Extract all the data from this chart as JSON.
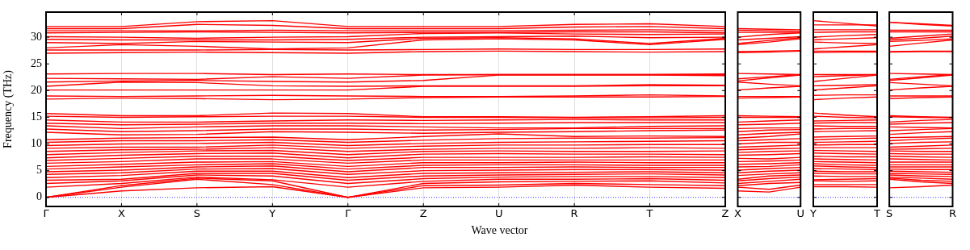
{
  "chart_data": [
    {
      "type": "line",
      "xlabel": "Wave vector",
      "ylabel": "Frequency (THz)",
      "color": "#ff0000",
      "grid": "x",
      "legend": false,
      "marker": "none",
      "line_style": "solid",
      "categories": [
        "Γ",
        "X",
        "S",
        "Y",
        "Γ",
        "Z",
        "U",
        "R",
        "T",
        "Z"
      ],
      "ylim": [
        -1.7,
        34.7
      ],
      "yticks": [
        0,
        5,
        10,
        15,
        20,
        25,
        30
      ],
      "ref_lines": [
        {
          "axis": "y",
          "value": 0,
          "color": "#0000ff",
          "line_style": "dotted"
        }
      ],
      "series": [
        {
          "values": [
            0,
            1.2,
            1.8,
            2.0,
            0,
            1.8,
            1.9,
            2.3,
            1.9,
            1.7
          ]
        },
        {
          "values": [
            0,
            1.9,
            3.4,
            2.4,
            0,
            2.2,
            2.3,
            2.6,
            2.4,
            2.2
          ]
        },
        {
          "values": [
            0,
            2.2,
            3.6,
            3.1,
            0,
            2.6,
            2.9,
            3.0,
            3.1,
            2.7
          ]
        },
        {
          "values": [
            1.9,
            2.6,
            3.8,
            3.3,
            1.9,
            3.0,
            3.4,
            3.4,
            3.5,
            3.2
          ]
        },
        {
          "values": [
            2.6,
            3.1,
            4.2,
            4.0,
            2.6,
            3.5,
            3.8,
            3.9,
            3.9,
            3.7
          ]
        },
        {
          "values": [
            3.2,
            3.4,
            4.5,
            4.5,
            3.2,
            4.0,
            4.2,
            4.3,
            4.4,
            4.2
          ]
        },
        {
          "values": [
            3.7,
            4.1,
            4.9,
            4.9,
            3.7,
            4.5,
            4.6,
            4.7,
            4.8,
            4.6
          ]
        },
        {
          "values": [
            4.3,
            4.6,
            5.3,
            5.4,
            4.3,
            5.0,
            5.1,
            5.2,
            5.2,
            5.1
          ]
        },
        {
          "values": [
            4.8,
            5.1,
            5.7,
            5.9,
            4.8,
            5.6,
            5.6,
            5.7,
            5.6,
            5.6
          ]
        },
        {
          "values": [
            5.3,
            5.7,
            6.1,
            6.3,
            5.3,
            6.0,
            6.1,
            6.1,
            6.0,
            6.0
          ]
        },
        {
          "values": [
            5.8,
            6.2,
            6.6,
            6.7,
            5.8,
            6.5,
            6.5,
            6.6,
            6.5,
            6.5
          ]
        },
        {
          "values": [
            6.4,
            6.7,
            7.2,
            7.2,
            6.4,
            7.0,
            7.0,
            7.0,
            7.0,
            7.0
          ]
        },
        {
          "values": [
            6.9,
            7.3,
            7.7,
            7.7,
            6.9,
            7.5,
            7.5,
            7.5,
            7.6,
            7.5
          ]
        },
        {
          "values": [
            7.4,
            7.9,
            8.2,
            8.3,
            7.4,
            8.1,
            8.2,
            8.1,
            8.1,
            8.0
          ]
        },
        {
          "values": [
            8.0,
            8.4,
            8.7,
            8.8,
            8.0,
            8.6,
            8.7,
            8.6,
            8.6,
            8.7
          ]
        },
        {
          "values": [
            8.6,
            8.9,
            9.0,
            9.3,
            8.6,
            9.0,
            9.2,
            9.2,
            9.3,
            9.2
          ]
        },
        {
          "values": [
            9.2,
            9.4,
            9.4,
            9.8,
            9.2,
            9.6,
            9.8,
            9.8,
            9.9,
            9.9
          ]
        },
        {
          "values": [
            9.7,
            10.0,
            10.1,
            10.3,
            9.7,
            10.1,
            10.3,
            10.4,
            10.5,
            10.6
          ]
        },
        {
          "values": [
            10.3,
            10.6,
            10.6,
            10.8,
            10.3,
            10.7,
            11.0,
            11.1,
            11.1,
            11.2
          ]
        },
        {
          "values": [
            10.8,
            11.1,
            11.2,
            11.3,
            10.8,
            11.4,
            11.9,
            11.4,
            11.5,
            11.4
          ]
        },
        {
          "values": [
            12.2,
            11.7,
            11.8,
            12.3,
            12.2,
            12.0,
            12.2,
            12.3,
            12.5,
            12.6
          ]
        },
        {
          "values": [
            12.8,
            12.3,
            12.5,
            12.8,
            12.8,
            12.6,
            12.7,
            12.9,
            12.9,
            12.9
          ]
        },
        {
          "values": [
            13.4,
            12.9,
            13.2,
            13.4,
            13.4,
            13.2,
            13.0,
            13.0,
            13.3,
            13.4
          ]
        },
        {
          "values": [
            13.9,
            13.6,
            13.7,
            13.9,
            13.9,
            13.8,
            13.9,
            14.0,
            14.0,
            14.0
          ]
        },
        {
          "values": [
            14.5,
            14.1,
            14.1,
            14.3,
            14.5,
            14.4,
            14.5,
            14.6,
            14.5,
            14.5
          ]
        },
        {
          "values": [
            15.2,
            15.0,
            15.1,
            15.2,
            15.2,
            15.0,
            15.0,
            14.9,
            14.9,
            15.0
          ]
        },
        {
          "values": [
            15.7,
            15.3,
            15.3,
            15.8,
            15.7,
            15.1,
            15.1,
            15.0,
            15.1,
            15.3
          ]
        },
        {
          "values": [
            18.4,
            18.6,
            18.5,
            18.3,
            18.4,
            18.7,
            18.8,
            18.8,
            18.8,
            18.9
          ]
        },
        {
          "values": [
            19.0,
            18.9,
            19.0,
            19.1,
            19.0,
            18.9,
            18.9,
            19.0,
            19.2,
            19.0
          ]
        },
        {
          "values": [
            20.1,
            20.1,
            20.1,
            20.1,
            20.1,
            20.8,
            20.8,
            20.8,
            20.9,
            20.9
          ]
        },
        {
          "values": [
            20.8,
            21.6,
            21.5,
            20.9,
            20.8,
            20.9,
            20.9,
            20.9,
            21.1,
            21.0
          ]
        },
        {
          "values": [
            21.6,
            21.8,
            21.9,
            21.7,
            21.6,
            21.9,
            22.9,
            22.9,
            22.9,
            22.8
          ]
        },
        {
          "values": [
            22.3,
            22.2,
            22.1,
            22.6,
            22.3,
            22.9,
            23.0,
            23.0,
            23.0,
            23.0
          ]
        },
        {
          "values": [
            23.1,
            23.2,
            23.2,
            23.0,
            23.1,
            23.0,
            23.0,
            23.0,
            23.0,
            23.1
          ]
        },
        {
          "values": [
            27.0,
            27.1,
            27.2,
            27.1,
            27.0,
            27.3,
            27.4,
            27.3,
            27.2,
            27.3
          ]
        },
        {
          "values": [
            27.6,
            27.6,
            27.6,
            27.7,
            27.6,
            27.7,
            27.8,
            27.7,
            27.7,
            27.8
          ]
        },
        {
          "values": [
            28.0,
            28.6,
            28.3,
            27.8,
            28.0,
            29.5,
            29.7,
            29.5,
            28.6,
            29.6
          ]
        },
        {
          "values": [
            29.0,
            28.8,
            29.2,
            29.1,
            29.0,
            29.8,
            29.9,
            29.7,
            28.8,
            29.8
          ]
        },
        {
          "values": [
            29.6,
            29.5,
            29.5,
            29.5,
            29.6,
            30.0,
            30.1,
            30.2,
            29.9,
            30.0
          ]
        },
        {
          "values": [
            30.1,
            30.0,
            29.8,
            30.0,
            30.1,
            30.7,
            30.8,
            30.6,
            30.5,
            30.6
          ]
        },
        {
          "values": [
            30.8,
            30.9,
            31.0,
            30.9,
            30.8,
            30.9,
            30.9,
            31.0,
            31.0,
            30.8
          ]
        },
        {
          "values": [
            31.2,
            31.2,
            31.2,
            31.3,
            31.2,
            31.2,
            31.2,
            31.3,
            31.4,
            31.2
          ]
        },
        {
          "values": [
            31.6,
            31.6,
            32.4,
            32.2,
            31.6,
            31.6,
            31.6,
            31.9,
            32.0,
            31.6
          ]
        },
        {
          "values": [
            32.0,
            32.0,
            32.9,
            33.1,
            32.0,
            32.0,
            32.0,
            32.4,
            32.5,
            32.0
          ]
        }
      ]
    },
    {
      "type": "line",
      "color": "#ff0000",
      "legend": false,
      "marker": "none",
      "line_style": "solid",
      "tick_labels": "x",
      "categories": [
        "X",
        null,
        "U"
      ],
      "ylim": [
        -1.7,
        34.7
      ],
      "yticks": [
        0,
        5,
        10,
        15,
        20,
        25,
        30
      ],
      "ref_lines": [
        {
          "axis": "y",
          "value": 0,
          "color": "#0000ff",
          "line_style": "dotted"
        }
      ],
      "series": [
        {
          "values": [
            1.2,
            1.0,
            1.9
          ]
        },
        {
          "values": [
            1.9,
            1.5,
            2.3
          ]
        },
        {
          "values": [
            2.2,
            2.6,
            2.8
          ]
        },
        {
          "values": [
            2.6,
            3.0,
            3.4
          ]
        },
        {
          "values": [
            3.1,
            3.5,
            3.8
          ]
        },
        {
          "values": [
            3.4,
            4.0,
            4.2
          ]
        },
        {
          "values": [
            4.1,
            4.4,
            4.6
          ]
        },
        {
          "values": [
            4.6,
            4.9,
            5.1
          ]
        },
        {
          "values": [
            5.1,
            5.4,
            5.6
          ]
        },
        {
          "values": [
            5.7,
            5.8,
            6.1
          ]
        },
        {
          "values": [
            6.2,
            6.3,
            6.5
          ]
        },
        {
          "values": [
            6.7,
            6.8,
            7.0
          ]
        },
        {
          "values": [
            7.3,
            7.2,
            7.5
          ]
        },
        {
          "values": [
            7.9,
            8.0,
            8.2
          ]
        },
        {
          "values": [
            8.4,
            8.6,
            8.7
          ]
        },
        {
          "values": [
            8.9,
            9.1,
            9.2
          ]
        },
        {
          "values": [
            9.4,
            9.6,
            9.8
          ]
        },
        {
          "values": [
            10.0,
            10.3,
            10.3
          ]
        },
        {
          "values": [
            10.6,
            10.8,
            11.0
          ]
        },
        {
          "values": [
            11.1,
            11.4,
            11.9
          ]
        },
        {
          "values": [
            11.7,
            12.0,
            12.2
          ]
        },
        {
          "values": [
            12.3,
            12.6,
            12.7
          ]
        },
        {
          "values": [
            12.9,
            13.0,
            13.0
          ]
        },
        {
          "values": [
            13.6,
            13.7,
            13.9
          ]
        },
        {
          "values": [
            14.1,
            14.3,
            14.5
          ]
        },
        {
          "values": [
            15.0,
            15.0,
            15.0
          ]
        },
        {
          "values": [
            15.3,
            15.2,
            15.1
          ]
        },
        {
          "values": [
            18.6,
            18.7,
            18.8
          ]
        },
        {
          "values": [
            18.9,
            18.9,
            18.9
          ]
        },
        {
          "values": [
            20.1,
            20.5,
            20.8
          ]
        },
        {
          "values": [
            21.6,
            21.2,
            20.9
          ]
        },
        {
          "values": [
            21.8,
            22.4,
            22.9
          ]
        },
        {
          "values": [
            22.2,
            22.6,
            23.0
          ]
        },
        {
          "values": [
            23.2,
            23.1,
            23.0
          ]
        },
        {
          "values": [
            27.1,
            27.2,
            27.4
          ]
        },
        {
          "values": [
            27.3,
            27.4,
            27.5
          ]
        },
        {
          "values": [
            28.6,
            29.1,
            29.7
          ]
        },
        {
          "values": [
            28.8,
            29.4,
            29.9
          ]
        },
        {
          "values": [
            29.5,
            29.8,
            30.1
          ]
        },
        {
          "values": [
            30.0,
            30.5,
            30.8
          ]
        },
        {
          "values": [
            30.9,
            30.9,
            30.9
          ]
        },
        {
          "values": [
            31.3,
            31.2,
            31.1
          ]
        },
        {
          "values": [
            31.6,
            31.5,
            31.4
          ]
        }
      ]
    },
    {
      "type": "line",
      "color": "#ff0000",
      "legend": false,
      "marker": "none",
      "line_style": "solid",
      "tick_labels": "x",
      "categories": [
        "Y",
        null,
        "T"
      ],
      "ylim": [
        -1.7,
        34.7
      ],
      "yticks": [
        0,
        5,
        10,
        15,
        20,
        25,
        30
      ],
      "ref_lines": [
        {
          "axis": "y",
          "value": 0,
          "color": "#0000ff",
          "line_style": "dotted"
        }
      ],
      "series": [
        {
          "values": [
            2.0,
            2.0,
            1.9
          ]
        },
        {
          "values": [
            2.4,
            2.4,
            2.4
          ]
        },
        {
          "values": [
            3.1,
            3.0,
            3.1
          ]
        },
        {
          "values": [
            3.3,
            3.4,
            3.5
          ]
        },
        {
          "values": [
            4.0,
            3.9,
            3.9
          ]
        },
        {
          "values": [
            4.5,
            4.4,
            4.4
          ]
        },
        {
          "values": [
            4.9,
            4.8,
            4.8
          ]
        },
        {
          "values": [
            5.4,
            5.3,
            5.2
          ]
        },
        {
          "values": [
            5.9,
            5.7,
            5.6
          ]
        },
        {
          "values": [
            6.3,
            6.1,
            6.0
          ]
        },
        {
          "values": [
            6.7,
            6.6,
            6.5
          ]
        },
        {
          "values": [
            7.2,
            7.1,
            7.0
          ]
        },
        {
          "values": [
            7.7,
            7.6,
            7.6
          ]
        },
        {
          "values": [
            8.3,
            8.2,
            8.1
          ]
        },
        {
          "values": [
            8.8,
            8.7,
            8.6
          ]
        },
        {
          "values": [
            9.3,
            9.3,
            9.3
          ]
        },
        {
          "values": [
            9.8,
            9.9,
            9.9
          ]
        },
        {
          "values": [
            10.3,
            10.4,
            10.5
          ]
        },
        {
          "values": [
            10.8,
            11.0,
            11.1
          ]
        },
        {
          "values": [
            11.3,
            11.4,
            11.5
          ]
        },
        {
          "values": [
            12.3,
            12.4,
            12.5
          ]
        },
        {
          "values": [
            12.8,
            12.9,
            12.9
          ]
        },
        {
          "values": [
            13.4,
            13.3,
            13.3
          ]
        },
        {
          "values": [
            13.9,
            14.0,
            14.0
          ]
        },
        {
          "values": [
            14.3,
            14.4,
            14.5
          ]
        },
        {
          "values": [
            15.2,
            15.0,
            14.9
          ]
        },
        {
          "values": [
            15.8,
            15.4,
            15.1
          ]
        },
        {
          "values": [
            18.3,
            18.6,
            18.8
          ]
        },
        {
          "values": [
            19.1,
            19.2,
            19.2
          ]
        },
        {
          "values": [
            20.1,
            20.5,
            20.9
          ]
        },
        {
          "values": [
            20.9,
            21.0,
            21.1
          ]
        },
        {
          "values": [
            21.7,
            22.3,
            22.9
          ]
        },
        {
          "values": [
            22.6,
            22.8,
            23.0
          ]
        },
        {
          "values": [
            23.0,
            23.0,
            23.0
          ]
        },
        {
          "values": [
            27.1,
            27.2,
            27.2
          ]
        },
        {
          "values": [
            27.4,
            27.4,
            27.4
          ]
        },
        {
          "values": [
            27.8,
            28.2,
            28.6
          ]
        },
        {
          "values": [
            29.1,
            28.9,
            28.8
          ]
        },
        {
          "values": [
            29.5,
            29.7,
            29.9
          ]
        },
        {
          "values": [
            30.0,
            30.3,
            30.5
          ]
        },
        {
          "values": [
            30.9,
            31.0,
            31.0
          ]
        },
        {
          "values": [
            31.4,
            31.4,
            31.4
          ]
        },
        {
          "values": [
            32.3,
            32.3,
            32.3
          ]
        },
        {
          "values": [
            33.1,
            32.6,
            32.1
          ]
        }
      ]
    },
    {
      "type": "line",
      "color": "#ff0000",
      "legend": false,
      "marker": "none",
      "line_style": "solid",
      "tick_labels": "x",
      "categories": [
        "S",
        null,
        "R"
      ],
      "ylim": [
        -1.7,
        34.7
      ],
      "yticks": [
        0,
        5,
        10,
        15,
        20,
        25,
        30
      ],
      "ref_lines": [
        {
          "axis": "y",
          "value": 0,
          "color": "#0000ff",
          "line_style": "dotted"
        }
      ],
      "series": [
        {
          "values": [
            1.8,
            2.0,
            2.3
          ]
        },
        {
          "values": [
            3.4,
            2.9,
            2.6
          ]
        },
        {
          "values": [
            3.6,
            3.2,
            3.0
          ]
        },
        {
          "values": [
            3.8,
            3.6,
            3.4
          ]
        },
        {
          "values": [
            4.2,
            4.0,
            3.9
          ]
        },
        {
          "values": [
            4.5,
            4.4,
            4.3
          ]
        },
        {
          "values": [
            4.9,
            4.8,
            4.7
          ]
        },
        {
          "values": [
            5.3,
            5.2,
            5.2
          ]
        },
        {
          "values": [
            5.7,
            5.7,
            5.7
          ]
        },
        {
          "values": [
            6.1,
            6.1,
            6.1
          ]
        },
        {
          "values": [
            6.6,
            6.6,
            6.6
          ]
        },
        {
          "values": [
            7.2,
            7.1,
            7.0
          ]
        },
        {
          "values": [
            7.7,
            7.6,
            7.5
          ]
        },
        {
          "values": [
            8.2,
            8.1,
            8.1
          ]
        },
        {
          "values": [
            8.7,
            8.6,
            8.6
          ]
        },
        {
          "values": [
            9.0,
            9.1,
            9.2
          ]
        },
        {
          "values": [
            9.4,
            9.6,
            9.8
          ]
        },
        {
          "values": [
            10.1,
            10.3,
            10.4
          ]
        },
        {
          "values": [
            10.6,
            10.9,
            11.1
          ]
        },
        {
          "values": [
            11.2,
            11.3,
            11.4
          ]
        },
        {
          "values": [
            11.8,
            12.1,
            12.3
          ]
        },
        {
          "values": [
            12.5,
            12.7,
            12.9
          ]
        },
        {
          "values": [
            13.2,
            13.1,
            13.0
          ]
        },
        {
          "values": [
            13.7,
            13.9,
            14.0
          ]
        },
        {
          "values": [
            14.1,
            14.4,
            14.6
          ]
        },
        {
          "values": [
            15.1,
            15.0,
            14.9
          ]
        },
        {
          "values": [
            15.3,
            15.1,
            15.0
          ]
        },
        {
          "values": [
            18.5,
            18.7,
            18.8
          ]
        },
        {
          "values": [
            19.0,
            19.0,
            19.0
          ]
        },
        {
          "values": [
            20.1,
            20.5,
            20.8
          ]
        },
        {
          "values": [
            21.5,
            21.2,
            20.9
          ]
        },
        {
          "values": [
            21.9,
            22.4,
            22.9
          ]
        },
        {
          "values": [
            22.1,
            22.6,
            23.0
          ]
        },
        {
          "values": [
            23.2,
            23.1,
            23.0
          ]
        },
        {
          "values": [
            27.2,
            27.3,
            27.3
          ]
        },
        {
          "values": [
            27.3,
            27.4,
            27.4
          ]
        },
        {
          "values": [
            28.3,
            28.9,
            29.5
          ]
        },
        {
          "values": [
            29.2,
            29.4,
            29.7
          ]
        },
        {
          "values": [
            29.5,
            29.8,
            30.2
          ]
        },
        {
          "values": [
            29.8,
            30.2,
            30.6
          ]
        },
        {
          "values": [
            31.0,
            31.0,
            31.0
          ]
        },
        {
          "values": [
            31.3,
            31.3,
            31.3
          ]
        },
        {
          "values": [
            32.8,
            32.4,
            32.1
          ]
        },
        {
          "values": [
            32.8,
            32.5,
            32.2
          ]
        }
      ]
    }
  ]
}
